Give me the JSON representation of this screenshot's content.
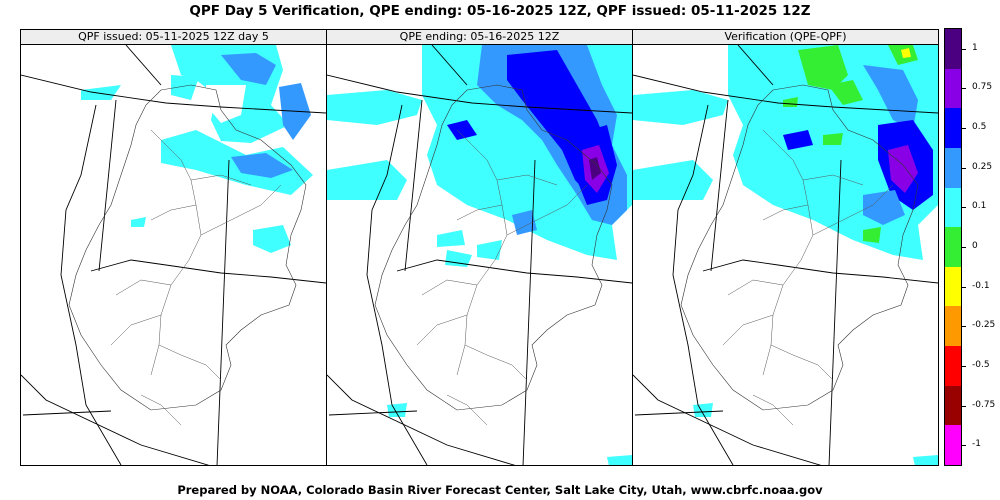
{
  "title": "QPF Day 5 Verification, QPE ending: 05-16-2025 12Z, QPF issued: 05-11-2025 12Z",
  "panels": [
    {
      "label": "QPF issued: 05-11-2025 12Z day 5"
    },
    {
      "label": "QPE ending: 05-16-2025 12Z"
    },
    {
      "label": "Verification (QPE-QPF)"
    }
  ],
  "legend": {
    "labels": [
      "1",
      "0.75",
      "0.5",
      "0.25",
      "0.1",
      "0",
      "-0.1",
      "-0.25",
      "-0.5",
      "-0.75",
      "-1"
    ],
    "colors": [
      "#4b0082",
      "#8a00e6",
      "#0000ff",
      "#3399ff",
      "#40ffff",
      "#33ee33",
      "#ffff00",
      "#ff9900",
      "#ff0000",
      "#990000",
      "#ff00ff"
    ]
  },
  "footer": "Prepared by NOAA, Colorado Basin River Forecast Center, Salt Lake City, Utah, www.cbrfc.noaa.gov"
}
